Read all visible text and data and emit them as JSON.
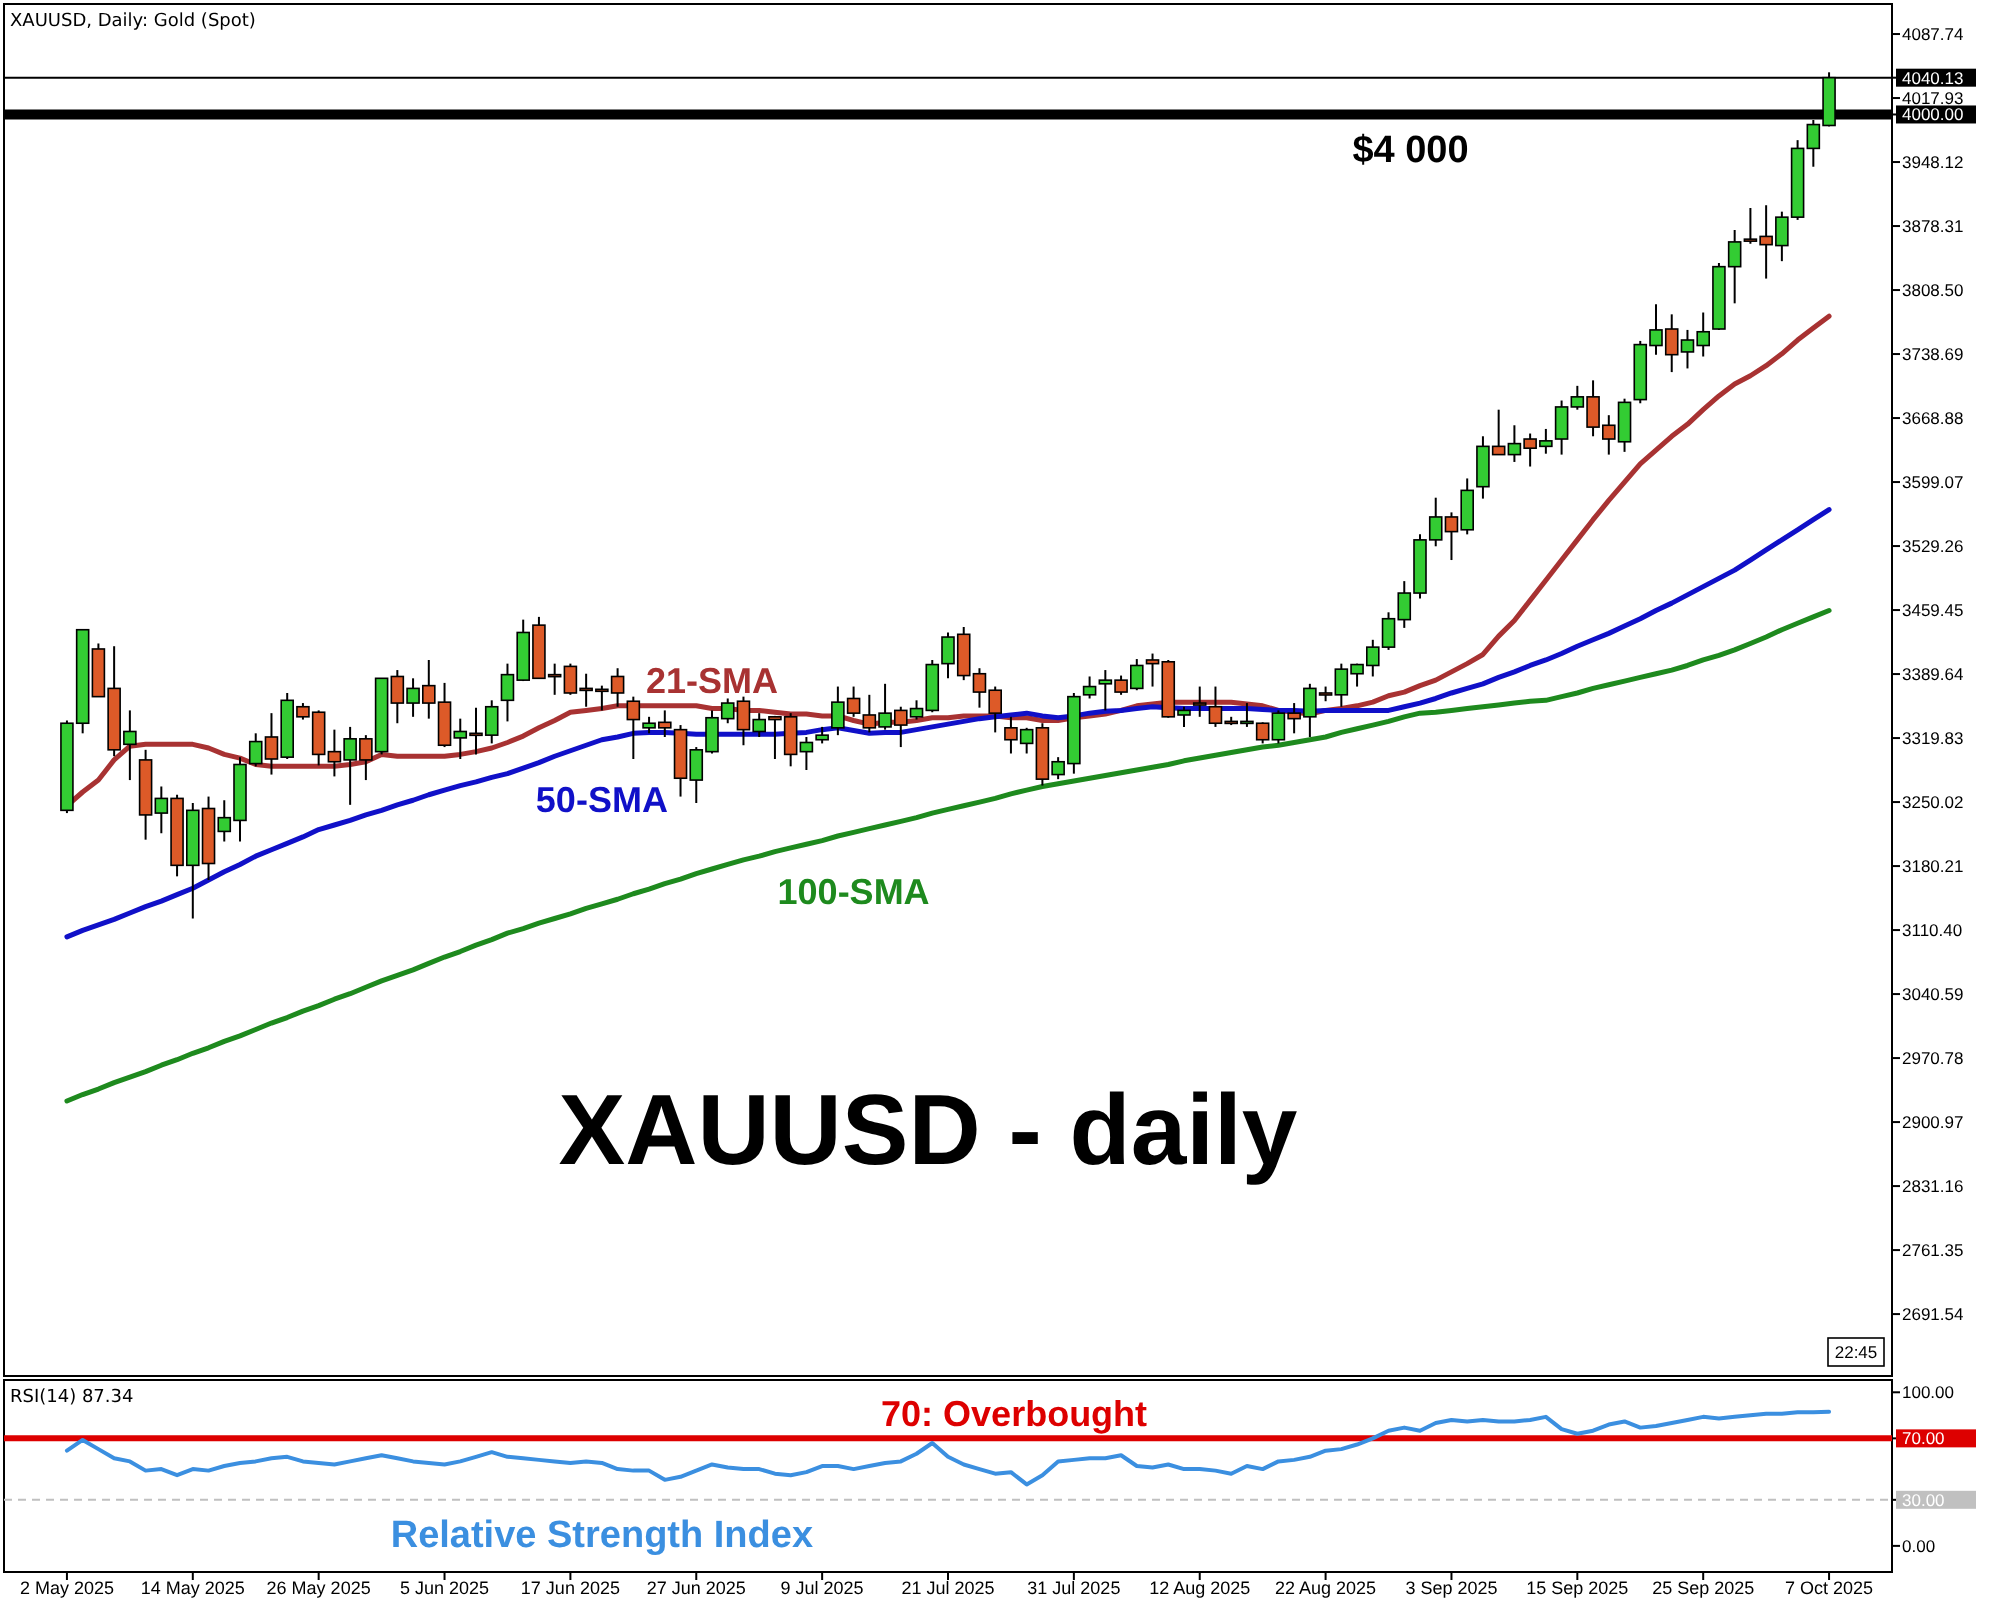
{
  "chart_data": [
    {
      "type": "candlestick",
      "title": "XAUUSD - daily",
      "subtitle": "XAUUSD, Daily:  Gold (Spot)",
      "categories": [
        null,
        null,
        null,
        null,
        null,
        null,
        null,
        null,
        null,
        null,
        null,
        null,
        null,
        null,
        null,
        null,
        null,
        null,
        null,
        null,
        null,
        null,
        null,
        null,
        null,
        null,
        null,
        null,
        null,
        null,
        null,
        null,
        null,
        null,
        null,
        null,
        null,
        null,
        null,
        null,
        null,
        null,
        null,
        null,
        null,
        null,
        null,
        null,
        null,
        null,
        null,
        null,
        null,
        null,
        null,
        null,
        null,
        null,
        null,
        null,
        null,
        null,
        null,
        null,
        null,
        null,
        null,
        null,
        null,
        null,
        null,
        null,
        null,
        null,
        null,
        null,
        null,
        null,
        null,
        null,
        null,
        null,
        null,
        null,
        null,
        null,
        null,
        null,
        null,
        null,
        null,
        null,
        null,
        null,
        null,
        null,
        null,
        null,
        null,
        null,
        null,
        null,
        null,
        null,
        null,
        null,
        null,
        null,
        null,
        null,
        null,
        null,
        null
      ],
      "ohlc": [
        [
          3241,
          3339,
          3238,
          3336
        ],
        [
          3336,
          3438,
          3325,
          3438
        ],
        [
          3417,
          3423,
          3365,
          3365
        ],
        [
          3374,
          3420,
          3300,
          3307
        ],
        [
          3313,
          3350,
          3274,
          3327
        ],
        [
          3296,
          3307,
          3209,
          3236
        ],
        [
          3238,
          3267,
          3216,
          3254
        ],
        [
          3254,
          3258,
          3169,
          3181
        ],
        [
          3181,
          3249,
          3123,
          3241
        ],
        [
          3243,
          3256,
          3165,
          3183
        ],
        [
          3218,
          3252,
          3207,
          3233
        ],
        [
          3230,
          3299,
          3207,
          3291
        ],
        [
          3292,
          3325,
          3289,
          3316
        ],
        [
          3321,
          3347,
          3280,
          3297
        ],
        [
          3299,
          3369,
          3297,
          3361
        ],
        [
          3354,
          3358,
          3340,
          3343
        ],
        [
          3348,
          3350,
          3290,
          3302
        ],
        [
          3305,
          3329,
          3278,
          3294
        ],
        [
          3296,
          3332,
          3247,
          3319
        ],
        [
          3319,
          3323,
          3274,
          3296
        ],
        [
          3305,
          3385,
          3302,
          3385
        ],
        [
          3387,
          3394,
          3336,
          3358
        ],
        [
          3358,
          3385,
          3343,
          3374
        ],
        [
          3377,
          3405,
          3341,
          3358
        ],
        [
          3359,
          3380,
          3310,
          3312
        ],
        [
          3320,
          3341,
          3297,
          3327
        ],
        [
          3325,
          3353,
          3302,
          3324
        ],
        [
          3323,
          3361,
          3314,
          3354
        ],
        [
          3361,
          3401,
          3338,
          3389
        ],
        [
          3383,
          3449,
          3382,
          3435
        ],
        [
          3443,
          3452,
          3385,
          3385
        ],
        [
          3389,
          3401,
          3367,
          3388
        ],
        [
          3398,
          3401,
          3367,
          3369
        ],
        [
          3374,
          3390,
          3354,
          3372
        ],
        [
          3373,
          3377,
          3350,
          3371
        ],
        [
          3387,
          3396,
          3354,
          3369
        ],
        [
          3360,
          3365,
          3297,
          3340
        ],
        [
          3331,
          3343,
          3325,
          3336
        ],
        [
          3337,
          3350,
          3321,
          3331
        ],
        [
          3329,
          3334,
          3256,
          3276
        ],
        [
          3274,
          3310,
          3249,
          3307
        ],
        [
          3305,
          3350,
          3303,
          3342
        ],
        [
          3341,
          3363,
          3336,
          3358
        ],
        [
          3360,
          3365,
          3312,
          3329
        ],
        [
          3327,
          3347,
          3321,
          3340
        ],
        [
          3343,
          3344,
          3297,
          3340
        ],
        [
          3343,
          3347,
          3289,
          3302
        ],
        [
          3305,
          3321,
          3285,
          3315
        ],
        [
          3318,
          3332,
          3314,
          3323
        ],
        [
          3331,
          3376,
          3323,
          3359
        ],
        [
          3363,
          3376,
          3343,
          3347
        ],
        [
          3345,
          3367,
          3326,
          3331
        ],
        [
          3332,
          3379,
          3329,
          3347
        ],
        [
          3350,
          3354,
          3310,
          3334
        ],
        [
          3343,
          3361,
          3340,
          3352
        ],
        [
          3350,
          3405,
          3348,
          3400
        ],
        [
          3401,
          3435,
          3385,
          3430
        ],
        [
          3433,
          3441,
          3383,
          3388
        ],
        [
          3390,
          3396,
          3353,
          3370
        ],
        [
          3372,
          3376,
          3326,
          3347
        ],
        [
          3331,
          3343,
          3303,
          3318
        ],
        [
          3314,
          3331,
          3303,
          3329
        ],
        [
          3331,
          3336,
          3268,
          3275
        ],
        [
          3280,
          3299,
          3275,
          3294
        ],
        [
          3292,
          3369,
          3281,
          3365
        ],
        [
          3367,
          3387,
          3363,
          3376
        ],
        [
          3379,
          3394,
          3350,
          3383
        ],
        [
          3383,
          3388,
          3367,
          3370
        ],
        [
          3374,
          3406,
          3372,
          3399
        ],
        [
          3405,
          3412,
          3376,
          3401
        ],
        [
          3403,
          3405,
          3342,
          3343
        ],
        [
          3345,
          3354,
          3332,
          3350
        ],
        [
          3358,
          3376,
          3343,
          3356
        ],
        [
          3354,
          3376,
          3332,
          3336
        ],
        [
          3338,
          3343,
          3334,
          3337
        ],
        [
          3337,
          3358,
          3332,
          3338
        ],
        [
          3336,
          3337,
          3314,
          3318
        ],
        [
          3318,
          3350,
          3314,
          3347
        ],
        [
          3347,
          3358,
          3325,
          3341
        ],
        [
          3343,
          3379,
          3321,
          3374
        ],
        [
          3369,
          3376,
          3360,
          3368
        ],
        [
          3367,
          3401,
          3354,
          3395
        ],
        [
          3390,
          3401,
          3376,
          3400
        ],
        [
          3399,
          3427,
          3387,
          3419
        ],
        [
          3419,
          3457,
          3416,
          3450
        ],
        [
          3449,
          3491,
          3440,
          3478
        ],
        [
          3478,
          3542,
          3472,
          3536
        ],
        [
          3536,
          3582,
          3529,
          3561
        ],
        [
          3561,
          3566,
          3514,
          3545
        ],
        [
          3547,
          3603,
          3542,
          3590
        ],
        [
          3594,
          3649,
          3581,
          3638
        ],
        [
          3638,
          3678,
          3629,
          3629
        ],
        [
          3629,
          3661,
          3621,
          3641
        ],
        [
          3646,
          3652,
          3616,
          3636
        ],
        [
          3638,
          3657,
          3630,
          3644
        ],
        [
          3646,
          3688,
          3629,
          3681
        ],
        [
          3681,
          3704,
          3678,
          3692
        ],
        [
          3692,
          3710,
          3649,
          3659
        ],
        [
          3661,
          3672,
          3629,
          3646
        ],
        [
          3643,
          3690,
          3632,
          3686
        ],
        [
          3689,
          3753,
          3685,
          3749
        ],
        [
          3748,
          3793,
          3738,
          3765
        ],
        [
          3766,
          3782,
          3719,
          3738
        ],
        [
          3741,
          3765,
          3723,
          3754
        ],
        [
          3748,
          3784,
          3736,
          3763
        ],
        [
          3766,
          3838,
          3765,
          3834
        ],
        [
          3834,
          3874,
          3794,
          3861
        ],
        [
          3864,
          3898,
          3859,
          3863
        ],
        [
          3867,
          3901,
          3821,
          3858
        ],
        [
          3857,
          3894,
          3840,
          3888
        ],
        [
          3888,
          3972,
          3885,
          3963
        ],
        [
          3963,
          3994,
          3943,
          3989
        ],
        [
          3988,
          4046,
          3987,
          4040.13
        ]
      ],
      "colors": [
        "#33cc33",
        "#33cc33",
        "#dd5a28",
        "#dd5a28",
        "#33cc33",
        "#dd5a28",
        "#33cc33",
        "#dd5a28",
        "#33cc33",
        "#dd5a28",
        "#33cc33",
        "#33cc33",
        "#33cc33",
        "#dd5a28",
        "#33cc33",
        "#dd5a28",
        "#dd5a28",
        "#dd5a28",
        "#33cc33",
        "#dd5a28",
        "#33cc33",
        "#dd5a28",
        "#33cc33",
        "#dd5a28",
        "#dd5a28",
        "#33cc33",
        "#dd5a28",
        "#33cc33",
        "#33cc33",
        "#33cc33",
        "#dd5a28",
        "#dd5a28",
        "#dd5a28",
        "#dd5a28",
        "#dd5a28",
        "#dd5a28",
        "#dd5a28",
        "#33cc33",
        "#dd5a28",
        "#dd5a28",
        "#33cc33",
        "#33cc33",
        "#33cc33",
        "#dd5a28",
        "#33cc33",
        "#dd5a28",
        "#dd5a28",
        "#33cc33",
        "#33cc33",
        "#33cc33",
        "#dd5a28",
        "#dd5a28",
        "#33cc33",
        "#dd5a28",
        "#33cc33",
        "#33cc33",
        "#33cc33",
        "#dd5a28",
        "#dd5a28",
        "#dd5a28",
        "#dd5a28",
        "#33cc33",
        "#dd5a28",
        "#33cc33",
        "#33cc33",
        "#33cc33",
        "#33cc33",
        "#dd5a28",
        "#33cc33",
        "#dd5a28",
        "#dd5a28",
        "#33cc33",
        "#dd5a28",
        "#dd5a28",
        "#dd5a28",
        "#33cc33",
        "#dd5a28",
        "#33cc33",
        "#dd5a28",
        "#33cc33",
        "#dd5a28",
        "#33cc33",
        "#33cc33",
        "#33cc33",
        "#33cc33",
        "#33cc33",
        "#33cc33",
        "#33cc33",
        "#dd5a28",
        "#33cc33",
        "#33cc33",
        "#dd5a28",
        "#33cc33",
        "#dd5a28",
        "#33cc33",
        "#33cc33",
        "#33cc33",
        "#dd5a28",
        "#dd5a28",
        "#33cc33",
        "#33cc33",
        "#33cc33",
        "#dd5a28",
        "#33cc33",
        "#33cc33",
        "#33cc33",
        "#33cc33",
        "#dd5a28",
        "#dd5a28",
        "#33cc33",
        "#33cc33",
        "#33cc33",
        "#33cc33"
      ],
      "series": [
        {
          "name": "21-SMA",
          "type": "line",
          "color": "#a83232",
          "values": [
            3246,
            3261,
            3274,
            3296,
            3311,
            3313,
            3313,
            3313,
            3313,
            3309,
            3302,
            3298,
            3291,
            3289,
            3289,
            3289,
            3289,
            3289,
            3291,
            3294,
            3302,
            3300,
            3300,
            3300,
            3300,
            3302,
            3305,
            3309,
            3315,
            3322,
            3331,
            3339,
            3348,
            3350,
            3352,
            3355,
            3355,
            3355,
            3355,
            3355,
            3355,
            3352,
            3352,
            3350,
            3350,
            3348,
            3346,
            3346,
            3344,
            3344,
            3339,
            3335,
            3337,
            3337,
            3339,
            3342,
            3342,
            3344,
            3344,
            3344,
            3342,
            3342,
            3339,
            3339,
            3342,
            3344,
            3346,
            3350,
            3355,
            3357,
            3359,
            3359,
            3359,
            3359,
            3359,
            3357,
            3355,
            3350,
            3348,
            3346,
            3350,
            3352,
            3355,
            3359,
            3366,
            3370,
            3377,
            3383,
            3392,
            3401,
            3411,
            3431,
            3448,
            3470,
            3492,
            3514,
            3536,
            3558,
            3579,
            3599,
            3619,
            3634,
            3649,
            3662,
            3678,
            3693,
            3706,
            3715,
            3726,
            3739,
            3754,
            3767,
            3780
          ]
        },
        {
          "name": "50-SMA",
          "type": "line",
          "color": "#1010c8",
          "values": [
            3103,
            3110,
            3116,
            3122,
            3129,
            3136,
            3142,
            3149,
            3156,
            3165,
            3174,
            3182,
            3191,
            3198,
            3205,
            3212,
            3220,
            3225,
            3230,
            3236,
            3241,
            3247,
            3252,
            3258,
            3263,
            3268,
            3272,
            3277,
            3281,
            3287,
            3293,
            3300,
            3306,
            3312,
            3318,
            3321,
            3325,
            3326,
            3326,
            3325,
            3324,
            3324,
            3324,
            3324,
            3324,
            3324,
            3325,
            3326,
            3329,
            3331,
            3328,
            3325,
            3326,
            3326,
            3329,
            3332,
            3335,
            3338,
            3341,
            3343,
            3345,
            3347,
            3344,
            3342,
            3344,
            3347,
            3349,
            3350,
            3352,
            3354,
            3353,
            3352,
            3352,
            3352,
            3352,
            3352,
            3351,
            3350,
            3350,
            3349,
            3350,
            3350,
            3350,
            3350,
            3350,
            3354,
            3358,
            3363,
            3369,
            3374,
            3379,
            3386,
            3392,
            3399,
            3405,
            3412,
            3420,
            3427,
            3434,
            3442,
            3450,
            3459,
            3467,
            3476,
            3485,
            3494,
            3503,
            3514,
            3525,
            3536,
            3547,
            3558,
            3569
          ]
        },
        {
          "name": "100-SMA",
          "type": "line",
          "color": "#1e8a1e",
          "values": [
            2924,
            2931,
            2937,
            2944,
            2950,
            2956,
            2963,
            2969,
            2976,
            2982,
            2989,
            2995,
            3002,
            3009,
            3015,
            3022,
            3028,
            3035,
            3041,
            3048,
            3055,
            3061,
            3067,
            3074,
            3081,
            3087,
            3094,
            3100,
            3107,
            3112,
            3118,
            3123,
            3128,
            3134,
            3139,
            3144,
            3150,
            3155,
            3161,
            3166,
            3172,
            3177,
            3182,
            3187,
            3191,
            3196,
            3200,
            3204,
            3208,
            3213,
            3217,
            3221,
            3225,
            3229,
            3233,
            3238,
            3242,
            3246,
            3250,
            3254,
            3259,
            3263,
            3267,
            3270,
            3273,
            3276,
            3279,
            3282,
            3285,
            3288,
            3291,
            3295,
            3298,
            3301,
            3304,
            3307,
            3310,
            3312,
            3315,
            3318,
            3321,
            3326,
            3330,
            3334,
            3338,
            3343,
            3347,
            3348,
            3350,
            3352,
            3354,
            3356,
            3358,
            3360,
            3361,
            3365,
            3369,
            3374,
            3378,
            3382,
            3386,
            3390,
            3394,
            3399,
            3405,
            3410,
            3416,
            3423,
            3430,
            3438,
            3445,
            3452,
            3459
          ]
        }
      ],
      "ylim": [
        2624,
        4120.5
      ],
      "yticks": [
        4087.74,
        4040.13,
        4017.93,
        {
          "value": 4000,
          "label": "4000.00"
        },
        3948.12,
        3878.31,
        {
          "value": 3808.5,
          "label": "3808.50"
        },
        3738.69,
        3668.88,
        3599.07,
        3529.26,
        3459.45,
        3389.64,
        3319.83,
        3250.02,
        3180.21,
        {
          "value": 3110.4,
          "label": "3110.40"
        },
        3040.59,
        2970.78,
        2900.97,
        2831.16,
        2761.35,
        2691.54
      ],
      "tick_labels": "y",
      "ref_lines": [
        {
          "axis": "y",
          "value": 4000,
          "label": "$4 000",
          "color": "#000000"
        },
        {
          "axis": "y",
          "value": 4040.13,
          "color": "#000000"
        }
      ],
      "annotations": [
        "22:45"
      ]
    },
    {
      "type": "line",
      "title": "RSI(14) 87.34",
      "categories": [
        "2 May 2025",
        null,
        null,
        null,
        null,
        null,
        null,
        null,
        "14 May 2025",
        null,
        null,
        null,
        null,
        null,
        null,
        null,
        "26 May 2025",
        null,
        null,
        null,
        null,
        null,
        null,
        null,
        "5 Jun 2025",
        null,
        null,
        null,
        null,
        null,
        null,
        null,
        "17 Jun 2025",
        null,
        null,
        null,
        null,
        null,
        null,
        null,
        "27 Jun 2025",
        null,
        null,
        null,
        null,
        null,
        null,
        null,
        "9 Jul 2025",
        null,
        null,
        null,
        null,
        null,
        null,
        null,
        "21 Jul 2025",
        null,
        null,
        null,
        null,
        null,
        null,
        null,
        "31 Jul 2025",
        null,
        null,
        null,
        null,
        null,
        null,
        null,
        "12 Aug 2025",
        null,
        null,
        null,
        null,
        null,
        null,
        null,
        "22 Aug 2025",
        null,
        null,
        null,
        null,
        null,
        null,
        null,
        "3 Sep 2025",
        null,
        null,
        null,
        null,
        null,
        null,
        null,
        "15 Sep 2025",
        null,
        null,
        null,
        null,
        null,
        null,
        null,
        "25 Sep 2025",
        null,
        null,
        null,
        null,
        null,
        null,
        null,
        "7 Oct 2025"
      ],
      "series": [
        {
          "name": "Relative Strength Index",
          "color": "#3b8fe0",
          "values": [
            62,
            69,
            63,
            57,
            55,
            49,
            50,
            46,
            50,
            49,
            52,
            54,
            55,
            57,
            58,
            55,
            54,
            53,
            55,
            57,
            59,
            57,
            55,
            54,
            53,
            55,
            58,
            61,
            58,
            57,
            56,
            55,
            54,
            55,
            54,
            50,
            49,
            49,
            43,
            45,
            49,
            53,
            51,
            50,
            50,
            47,
            46,
            48,
            52,
            52,
            50,
            52,
            54,
            55,
            60,
            67,
            58,
            53,
            50,
            47,
            48,
            40,
            46,
            55,
            56,
            57,
            57,
            59,
            52,
            51,
            53,
            50,
            50,
            49,
            47,
            52,
            50,
            55,
            56,
            58,
            62,
            63,
            66,
            70,
            75,
            77,
            75,
            80,
            82,
            81,
            82,
            81,
            81,
            82,
            84,
            76,
            73,
            75,
            79,
            81,
            77,
            78,
            80,
            82,
            84,
            83,
            84,
            85,
            86,
            86,
            87,
            87,
            87.34
          ]
        }
      ],
      "ylim": [
        -17,
        108
      ],
      "yticks": [
        {
          "value": 100,
          "label": "100.00"
        },
        {
          "value": 70,
          "label": "70.00"
        },
        {
          "value": 30,
          "label": "30.00"
        },
        {
          "value": 0,
          "label": "0.00"
        }
      ],
      "ref_lines": [
        {
          "axis": "y",
          "value": 70,
          "label": "70: Overbought",
          "color": "#dd0000"
        },
        {
          "axis": "y",
          "value": 30,
          "color": "#c0c0c0",
          "line_style": "dashed"
        }
      ]
    }
  ]
}
